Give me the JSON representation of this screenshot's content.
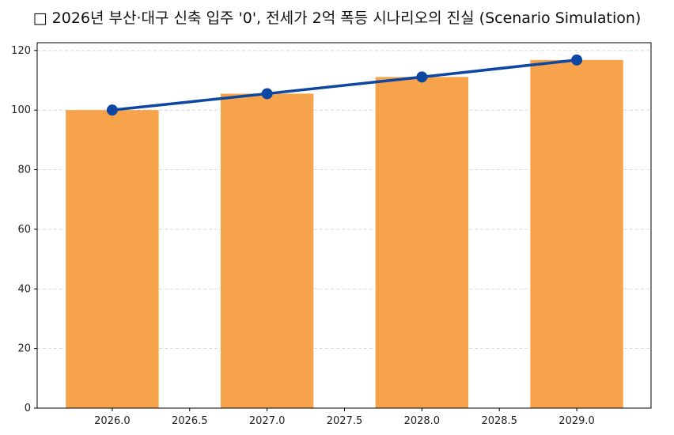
{
  "chart_data": {
    "type": "bar",
    "title": "□ 2026년 부산·대구 신축 입주 '0', 전세가 2억 폭등 시나리오의 진실 (Scenario Simulation)",
    "x": [
      2026,
      2027,
      2028,
      2029
    ],
    "bar_values": [
      100,
      105.5,
      111.1,
      116.8
    ],
    "line_values": [
      100,
      105.5,
      111.1,
      116.8
    ],
    "bar_color": "#F7A34B",
    "line_color": "#0D47A1",
    "xlim": [
      2025.515,
      2029.48
    ],
    "ylim": [
      0,
      122.6
    ],
    "xticks": [
      "2026.0",
      "2026.5",
      "2027.0",
      "2027.5",
      "2028.0",
      "2028.5",
      "2029.0"
    ],
    "yticks": [
      "0",
      "20",
      "40",
      "60",
      "80",
      "100",
      "120"
    ],
    "grid": "y-dashed",
    "xlabel": "",
    "ylabel": ""
  }
}
